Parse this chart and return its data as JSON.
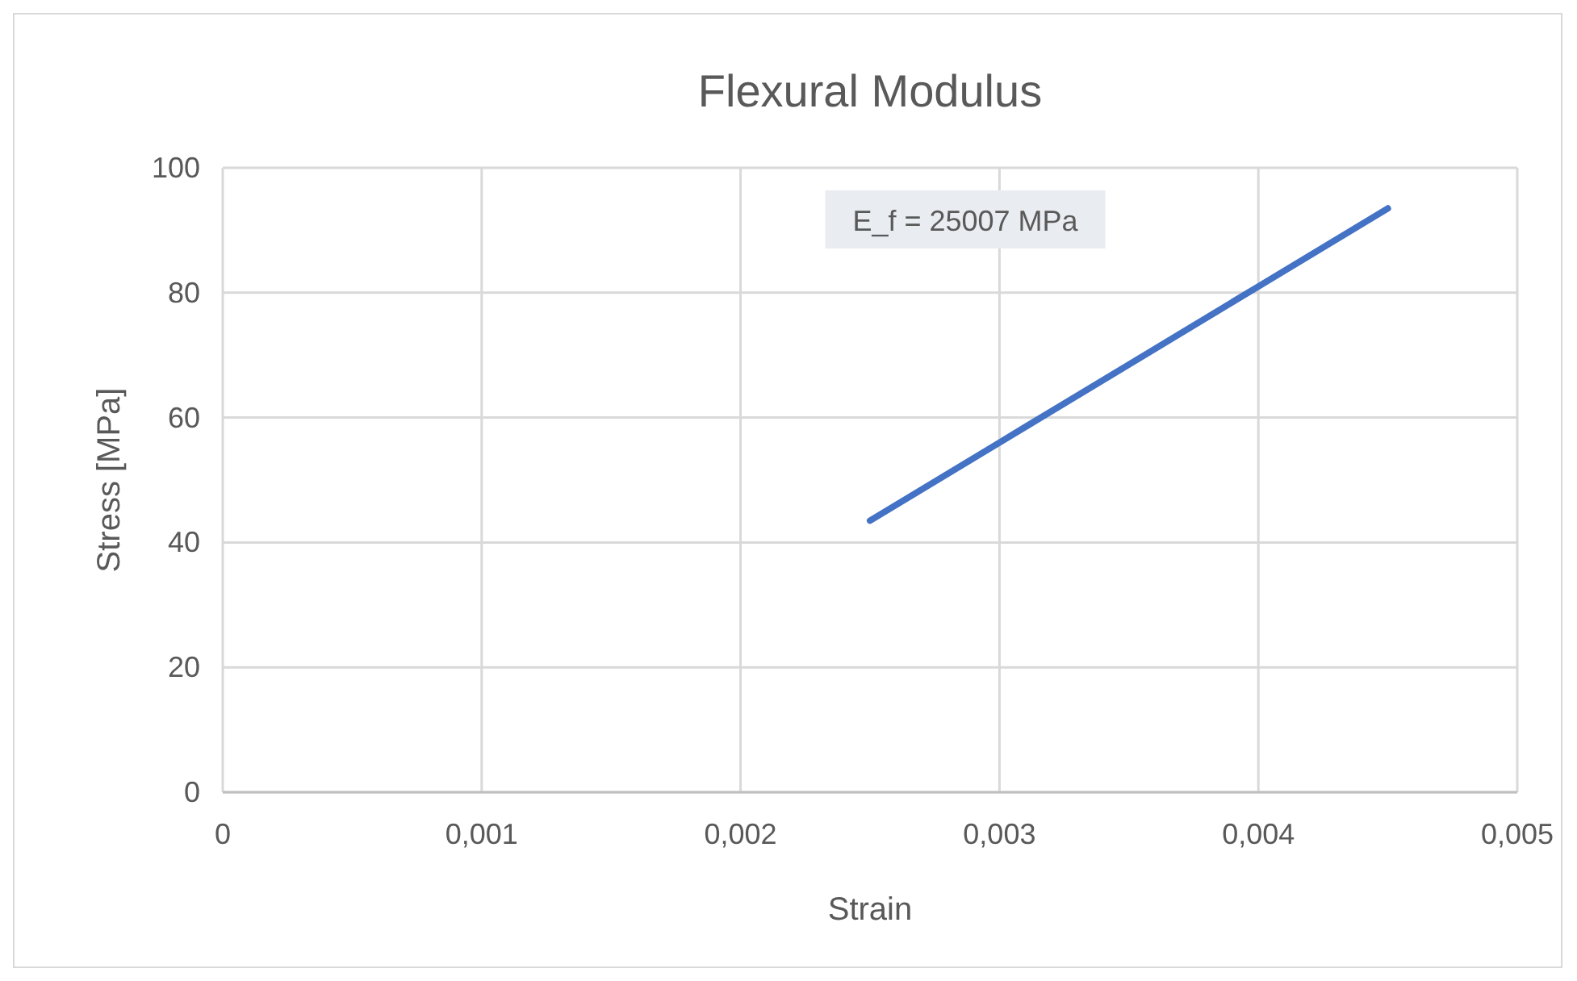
{
  "chart_data": {
    "type": "line",
    "title": "Flexural Modulus",
    "xlabel": "Strain",
    "ylabel": "Stress [MPa]",
    "x": [
      0.0025,
      0.003,
      0.0035,
      0.004,
      0.0045
    ],
    "series": [
      {
        "color": "#4472c4",
        "values": [
          43.5,
          56,
          68.5,
          81,
          93.5
        ]
      }
    ],
    "xlim": [
      0,
      0.005
    ],
    "xticks": [
      0,
      {
        "value": 0.001,
        "label": "0,001"
      },
      {
        "value": 0.002,
        "label": "0,002"
      },
      {
        "value": 0.003,
        "label": "0,003"
      },
      {
        "value": 0.004,
        "label": "0,004"
      },
      {
        "value": 0.005,
        "label": "0,005"
      }
    ],
    "ylim": [
      0,
      100
    ],
    "yticks": [
      0,
      20,
      40,
      60,
      80,
      100
    ],
    "grid": true,
    "marker": "none",
    "line_style": "solid",
    "annotations": [
      "E_f = 25007 MPa"
    ]
  }
}
